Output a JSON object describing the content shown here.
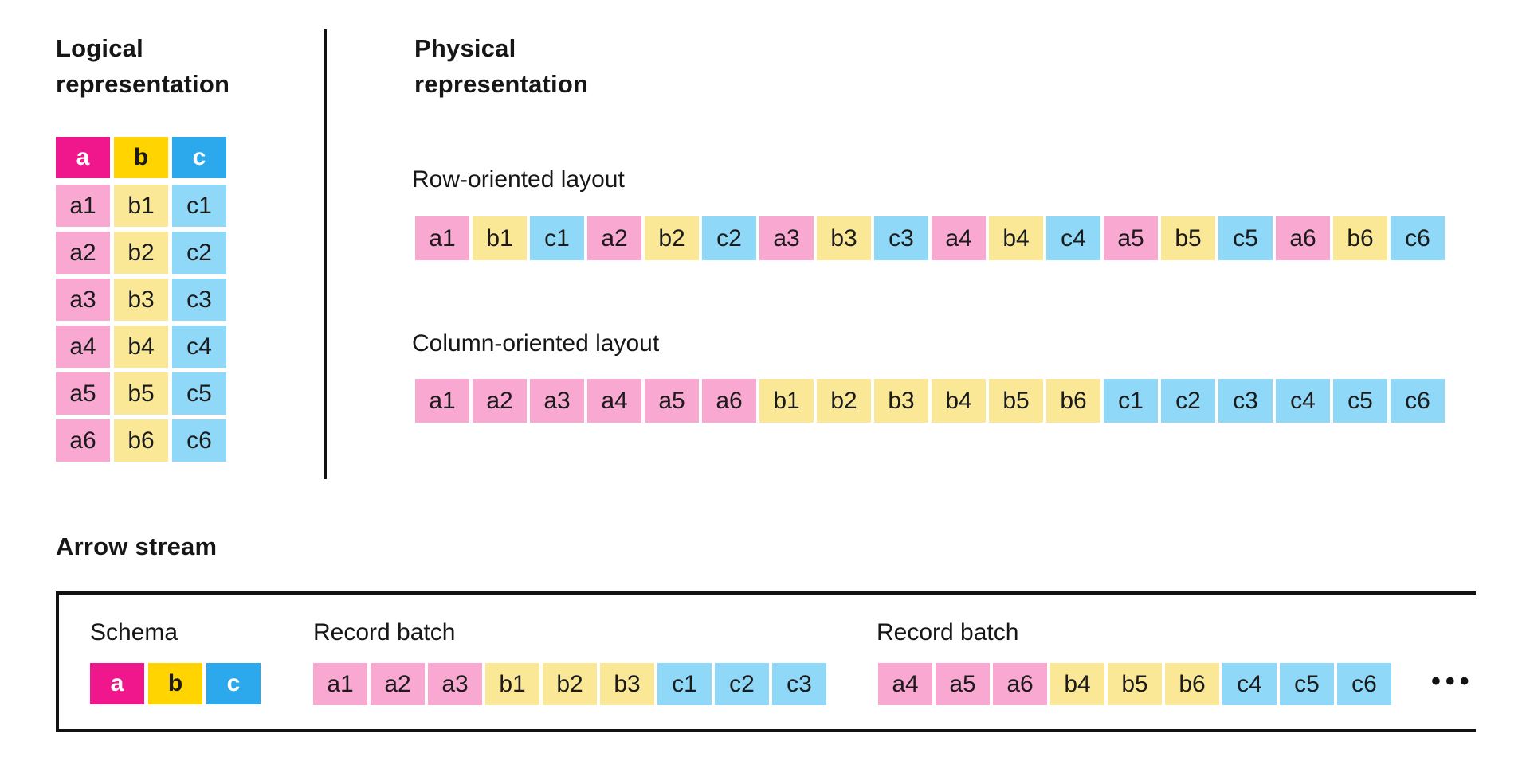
{
  "colors": {
    "pink_bright": "#F0168C",
    "yellow_bright": "#FFD400",
    "blue_bright": "#2BA9EC",
    "pink_light": "#F9A8D2",
    "yellow_light": "#FAE896",
    "blue_light": "#8FD8F8",
    "ink": "#161616"
  },
  "sections": {
    "logical": {
      "title": "Logical representation",
      "header": [
        "a",
        "b",
        "c"
      ],
      "cells": [
        "a1",
        "b1",
        "c1",
        "a2",
        "b2",
        "c2",
        "a3",
        "b3",
        "c3",
        "a4",
        "b4",
        "c4",
        "a5",
        "b5",
        "c5",
        "a6",
        "b6",
        "c6"
      ]
    },
    "physical": {
      "title": "Physical representation",
      "row_layout": {
        "label": "Row-oriented layout",
        "cells": [
          "a1",
          "b1",
          "c1",
          "a2",
          "b2",
          "c2",
          "a3",
          "b3",
          "c3",
          "a4",
          "b4",
          "c4",
          "a5",
          "b5",
          "c5",
          "a6",
          "b6",
          "c6"
        ]
      },
      "column_layout": {
        "label": "Column-oriented layout",
        "cells": [
          "a1",
          "a2",
          "a3",
          "a4",
          "a5",
          "a6",
          "b1",
          "b2",
          "b3",
          "b4",
          "b5",
          "b6",
          "c1",
          "c2",
          "c3",
          "c4",
          "c5",
          "c6"
        ]
      }
    },
    "stream": {
      "title": "Arrow stream",
      "schema": {
        "label": "Schema",
        "cells": [
          "a",
          "b",
          "c"
        ]
      },
      "batches": [
        {
          "label": "Record batch",
          "cells": [
            "a1",
            "a2",
            "a3",
            "b1",
            "b2",
            "b3",
            "c1",
            "c2",
            "c3"
          ]
        },
        {
          "label": "Record batch",
          "cells": [
            "a4",
            "a5",
            "a6",
            "b4",
            "b5",
            "b6",
            "c4",
            "c5",
            "c6"
          ]
        }
      ],
      "ellipsis": "•••"
    }
  }
}
